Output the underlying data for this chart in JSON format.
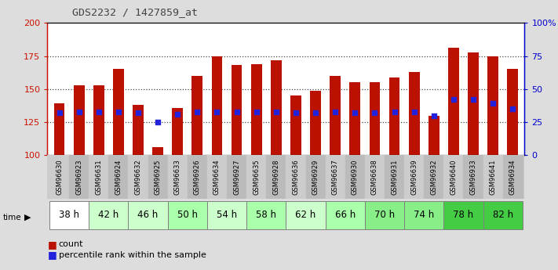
{
  "title": "GDS2232 / 1427859_at",
  "samples": [
    "GSM96630",
    "GSM96923",
    "GSM96631",
    "GSM96924",
    "GSM96632",
    "GSM96925",
    "GSM96633",
    "GSM96926",
    "GSM96634",
    "GSM96927",
    "GSM96635",
    "GSM96928",
    "GSM96636",
    "GSM96929",
    "GSM96637",
    "GSM96930",
    "GSM96638",
    "GSM96931",
    "GSM96639",
    "GSM96932",
    "GSM96640",
    "GSM96933",
    "GSM96641",
    "GSM96934"
  ],
  "time_groups": [
    {
      "label": "38 h",
      "indices": [
        0,
        1
      ],
      "color": "#ffffff"
    },
    {
      "label": "42 h",
      "indices": [
        2,
        3
      ],
      "color": "#ccffcc"
    },
    {
      "label": "46 h",
      "indices": [
        4,
        5
      ],
      "color": "#ccffcc"
    },
    {
      "label": "50 h",
      "indices": [
        6,
        7
      ],
      "color": "#aaffaa"
    },
    {
      "label": "54 h",
      "indices": [
        8,
        9
      ],
      "color": "#ccffcc"
    },
    {
      "label": "58 h",
      "indices": [
        10,
        11
      ],
      "color": "#aaffaa"
    },
    {
      "label": "62 h",
      "indices": [
        12,
        13
      ],
      "color": "#ccffcc"
    },
    {
      "label": "66 h",
      "indices": [
        14,
        15
      ],
      "color": "#aaffaa"
    },
    {
      "label": "70 h",
      "indices": [
        16,
        17
      ],
      "color": "#88ee88"
    },
    {
      "label": "74 h",
      "indices": [
        18,
        19
      ],
      "color": "#88ee88"
    },
    {
      "label": "78 h",
      "indices": [
        20,
        21
      ],
      "color": "#44cc44"
    },
    {
      "label": "82 h",
      "indices": [
        22,
        23
      ],
      "color": "#44cc44"
    }
  ],
  "counts": [
    139,
    153,
    153,
    165,
    138,
    106,
    136,
    160,
    175,
    168,
    169,
    172,
    145,
    149,
    160,
    155,
    155,
    159,
    163,
    130,
    181,
    178,
    175,
    165
  ],
  "percentile_ranks": [
    32,
    33,
    33,
    33,
    32,
    25,
    31,
    33,
    33,
    33,
    33,
    33,
    32,
    32,
    33,
    32,
    32,
    33,
    33,
    30,
    42,
    42,
    39,
    35
  ],
  "ymin": 100,
  "ymax": 200,
  "yticks_left": [
    100,
    125,
    150,
    175,
    200
  ],
  "yticks_right": [
    0,
    25,
    50,
    75,
    100
  ],
  "bar_color": "#bb1100",
  "dot_color": "#2222dd",
  "bg_color": "#ffffff",
  "fig_bg_color": "#dddddd",
  "sample_bg_color": "#cccccc",
  "left_axis_color": "#cc1100",
  "right_axis_color": "#0000cc",
  "title_color": "#444444",
  "grid_dotted_color": "#444444"
}
